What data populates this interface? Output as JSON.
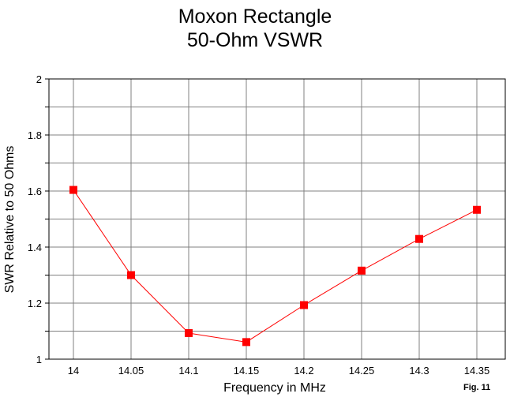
{
  "chart_data": {
    "type": "line",
    "title": "Moxon Rectangle",
    "subtitle": "50-Ohm VSWR",
    "xlabel": "Frequency in MHz",
    "ylabel": "SWR Relative to 50 Ohms",
    "categories": [
      "14",
      "14.05",
      "14.1",
      "14.15",
      "14.2",
      "14.25",
      "14.3",
      "14.35"
    ],
    "series": [
      {
        "values": [
          1.604,
          1.3,
          1.093,
          1.061,
          1.193,
          1.316,
          1.429,
          1.533
        ],
        "color": "#ff0000",
        "marker": "square"
      }
    ],
    "ylim": [
      1,
      2
    ],
    "yticks": [
      "1",
      "1.2",
      "1.4",
      "1.6",
      "1.8",
      "2"
    ],
    "grid": true,
    "annotation": "Fig. 11"
  }
}
